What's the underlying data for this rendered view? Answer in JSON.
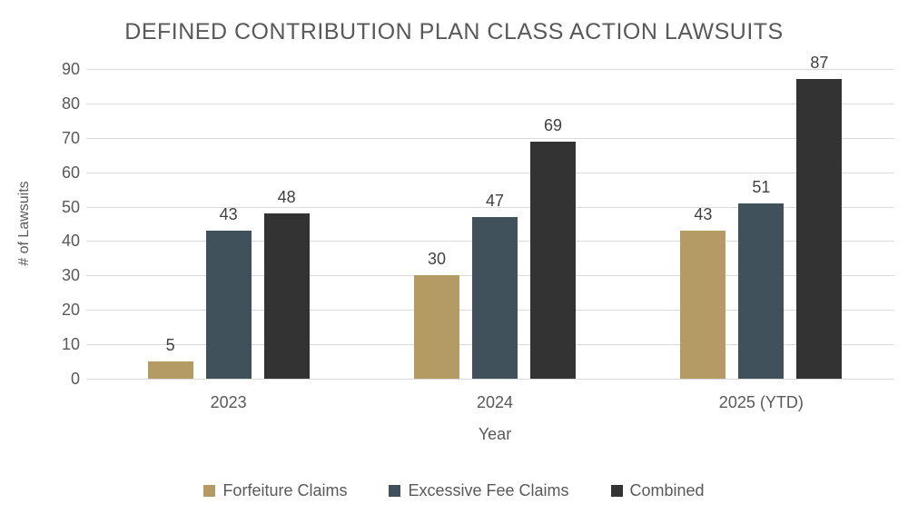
{
  "chart_data": {
    "type": "bar",
    "title": "DEFINED CONTRIBUTION PLAN CLASS ACTION LAWSUITS",
    "categories": [
      "2023",
      "2024",
      "2025 (YTD)"
    ],
    "series": [
      {
        "name": "Forfeiture Claims",
        "color": "#b39b63",
        "values": [
          5,
          30,
          43
        ]
      },
      {
        "name": "Excessive Fee Claims",
        "color": "#40515c",
        "values": [
          43,
          47,
          51
        ]
      },
      {
        "name": "Combined",
        "color": "#333333",
        "values": [
          48,
          69,
          87
        ]
      }
    ],
    "xlabel": "Year",
    "ylabel": "# of Lawsuits",
    "ylim": [
      0,
      90
    ],
    "ytick_step": 10,
    "grid": true,
    "legend_position": "bottom"
  },
  "colors": {
    "title_text": "#595959",
    "axis_text": "#595959",
    "data_label_text": "#404040",
    "gridline": "#d9d9d9",
    "background": "#ffffff"
  }
}
